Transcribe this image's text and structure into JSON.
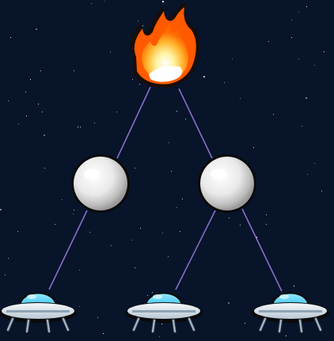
{
  "scene": {
    "background": "#07142a",
    "link_color": "#8a6cc9",
    "nodes": [
      {
        "id": "fire",
        "kind": "fireball",
        "icon": "fireball-icon",
        "interactive": true
      },
      {
        "id": "orb-left",
        "kind": "orb",
        "icon": "moon-orb-icon",
        "interactive": true
      },
      {
        "id": "orb-right",
        "kind": "orb",
        "icon": "moon-orb-icon",
        "interactive": true
      },
      {
        "id": "ufo-1",
        "kind": "ufo",
        "icon": "ufo-icon",
        "interactive": true
      },
      {
        "id": "ufo-2",
        "kind": "ufo",
        "icon": "ufo-icon",
        "interactive": true
      },
      {
        "id": "ufo-3",
        "kind": "ufo",
        "icon": "ufo-icon",
        "interactive": true
      }
    ],
    "links": [
      [
        "fire",
        "orb-left"
      ],
      [
        "fire",
        "orb-right"
      ],
      [
        "orb-left",
        "ufo-1"
      ],
      [
        "orb-right",
        "ufo-2"
      ],
      [
        "orb-right",
        "ufo-3"
      ]
    ]
  }
}
